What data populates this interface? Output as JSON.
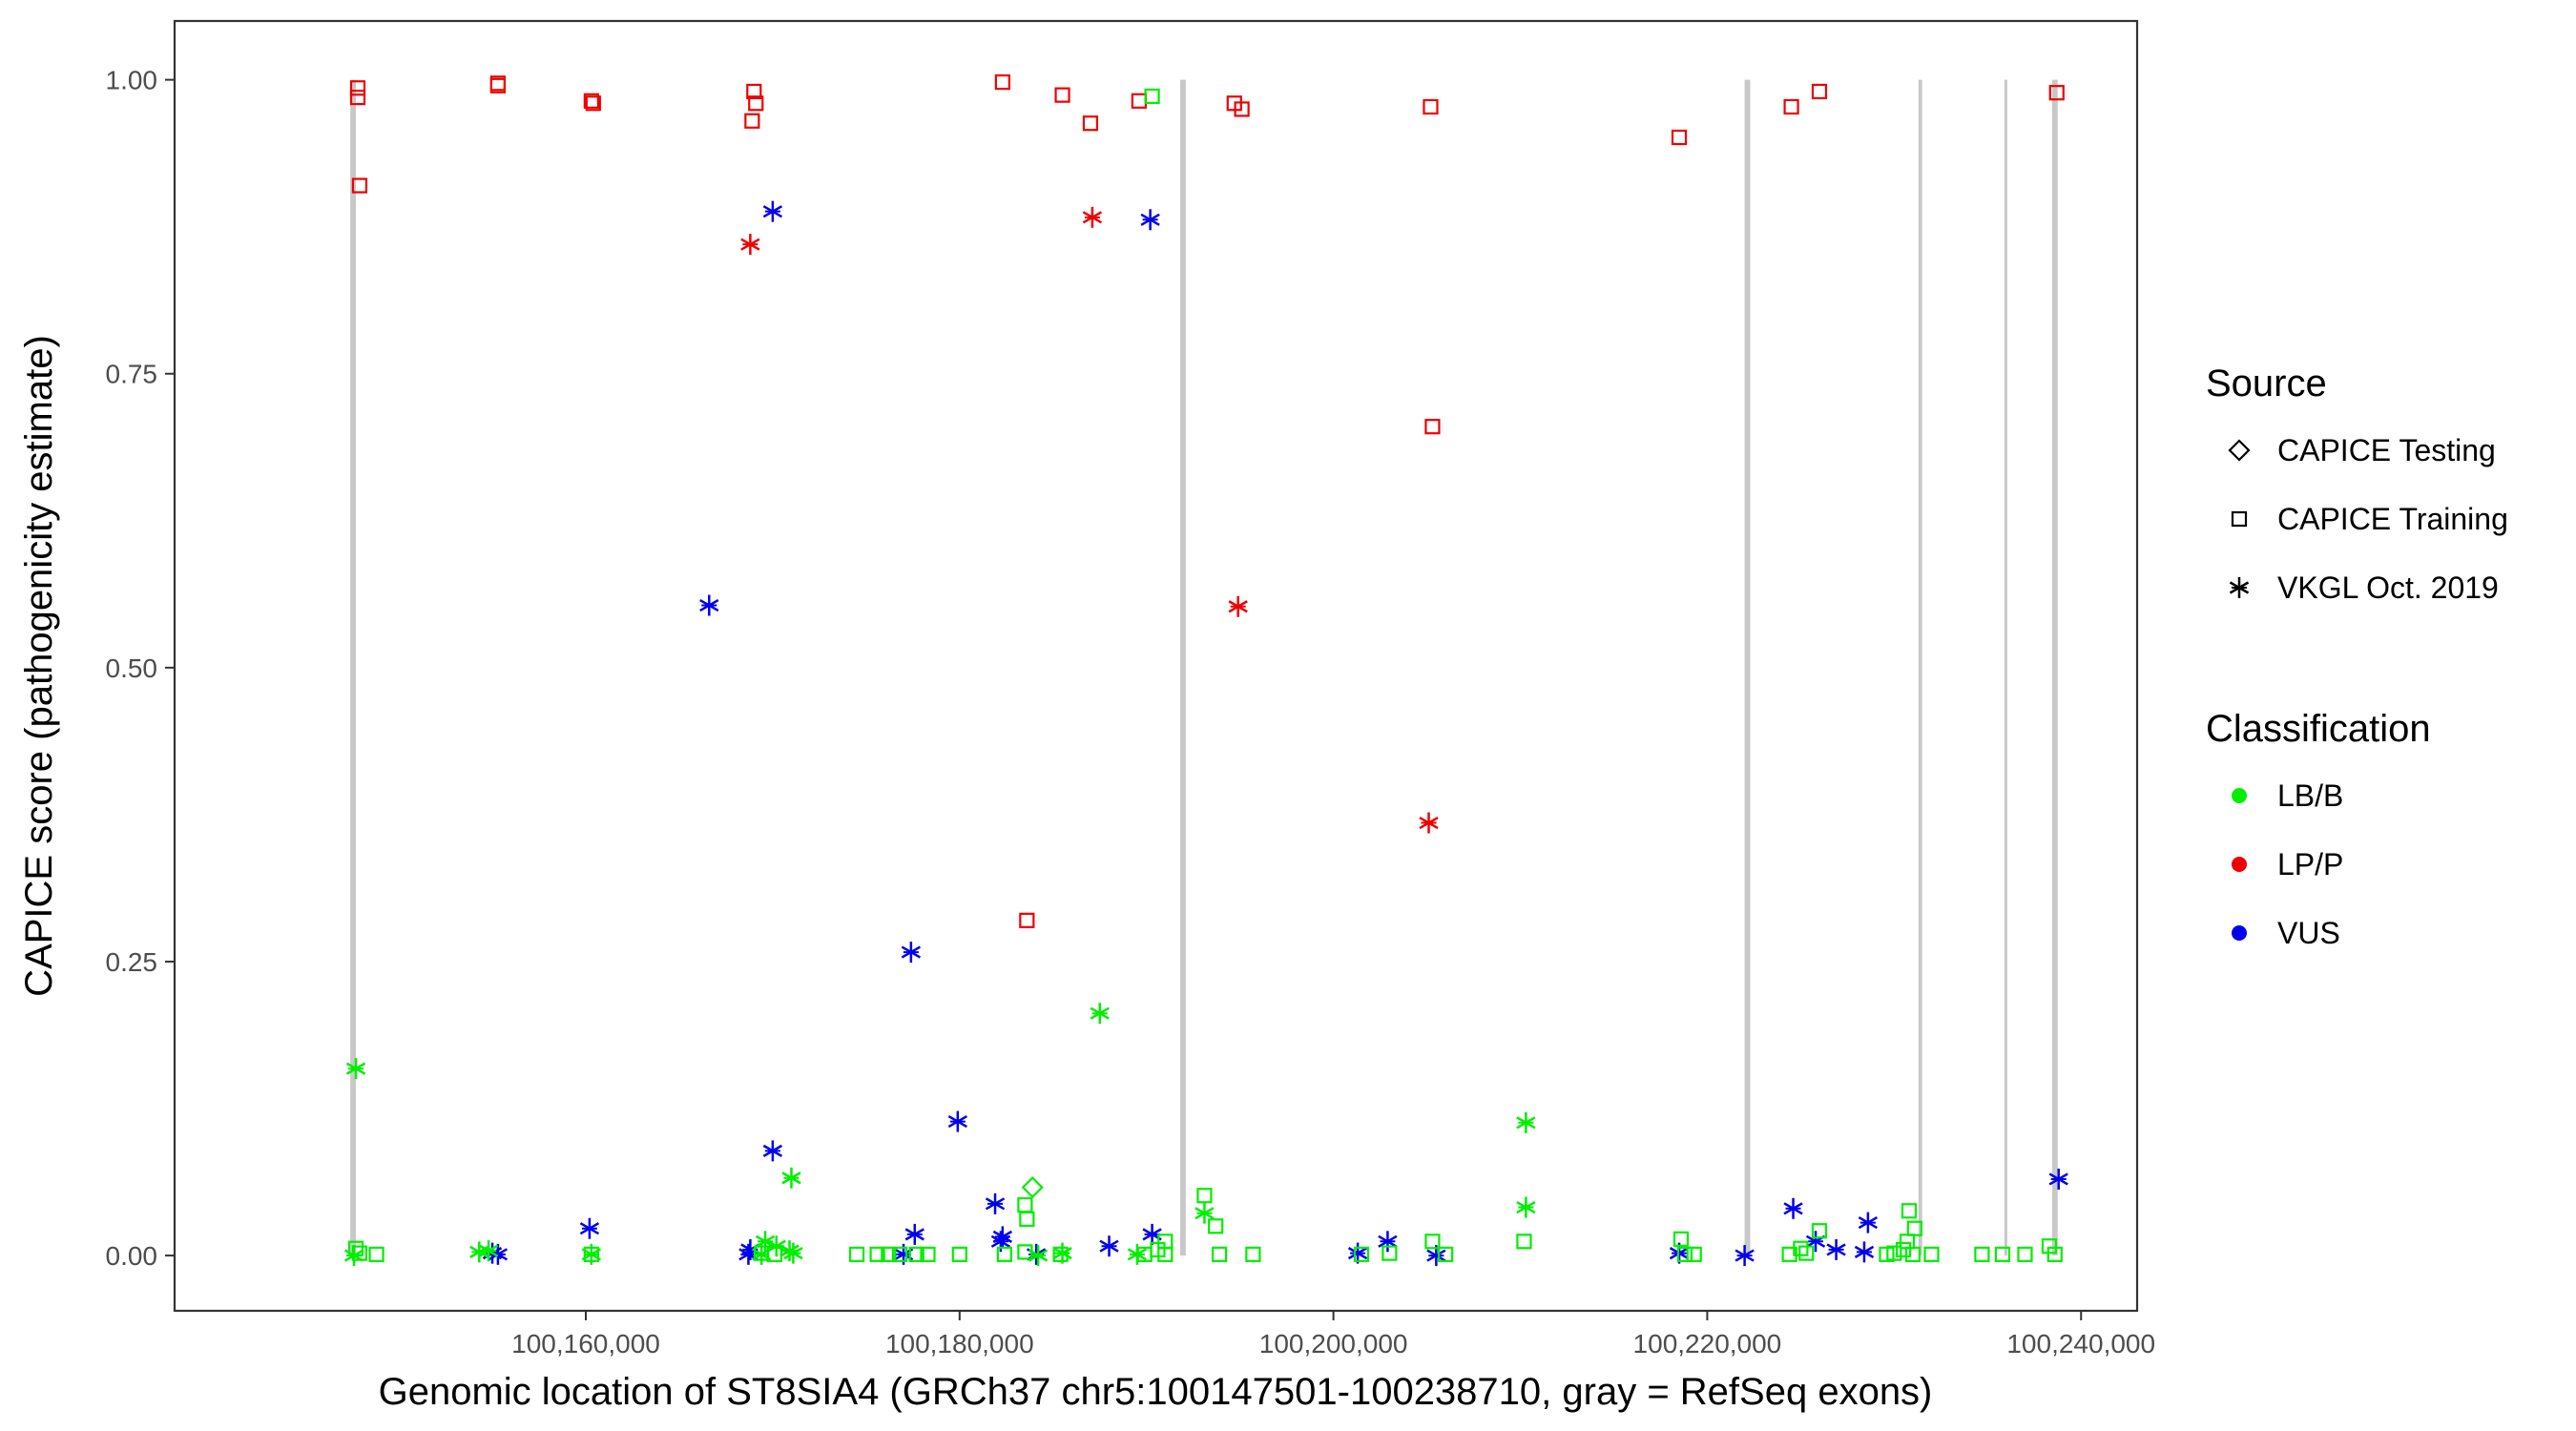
{
  "chart_data": {
    "type": "scatter",
    "xlabel": "Genomic location of ST8SIA4 (GRCh37 chr5:100147501-100238710, gray = RefSeq exons)",
    "ylabel": "CAPICE score (pathogenicity estimate)",
    "xlim": [
      100138000,
      100243000
    ],
    "ylim": [
      -0.047,
      1.05
    ],
    "x_ticks": [
      {
        "value": 100160000,
        "label": "100,160,000"
      },
      {
        "value": 100180000,
        "label": "100,180,000"
      },
      {
        "value": 100200000,
        "label": "100,200,000"
      },
      {
        "value": 100220000,
        "label": "100,220,000"
      },
      {
        "value": 100240000,
        "label": "100,240,000"
      }
    ],
    "y_ticks": [
      {
        "value": 0.0,
        "label": "0.00"
      },
      {
        "value": 0.25,
        "label": "0.25"
      },
      {
        "value": 0.5,
        "label": "0.50"
      },
      {
        "value": 0.75,
        "label": "0.75"
      },
      {
        "value": 1.0,
        "label": "1.00"
      }
    ],
    "grid": false,
    "exons": [
      {
        "start": 100147400,
        "end": 100147700
      },
      {
        "start": 100191800,
        "end": 100192100
      },
      {
        "start": 100222000,
        "end": 100222300
      },
      {
        "start": 100231300,
        "end": 100231500
      },
      {
        "start": 100235900,
        "end": 100236000
      },
      {
        "start": 100238450,
        "end": 100238750
      }
    ],
    "legend": {
      "position": "right",
      "source": {
        "title": "Source",
        "items": [
          {
            "label": "CAPICE Testing",
            "shape": "diamond"
          },
          {
            "label": "CAPICE Training",
            "shape": "square"
          },
          {
            "label": "VKGL Oct. 2019",
            "shape": "asterisk"
          }
        ]
      },
      "classification": {
        "title": "Classification",
        "items": [
          {
            "label": "LB/B",
            "color": "#00ee00"
          },
          {
            "label": "LP/P",
            "color": "#ee0000"
          },
          {
            "label": "VUS",
            "color": "#0000ee"
          }
        ]
      }
    },
    "series": [
      {
        "source": "CAPICE Training",
        "classification": "LP/P",
        "shape": "square",
        "color": "#ee0000",
        "points": [
          [
            100147800,
            0.993
          ],
          [
            100147800,
            0.985
          ],
          [
            100147900,
            0.91
          ],
          [
            100155300,
            0.997
          ],
          [
            100155300,
            0.995
          ],
          [
            100160300,
            0.982
          ],
          [
            100160400,
            0.98
          ],
          [
            100169000,
            0.99
          ],
          [
            100169100,
            0.98
          ],
          [
            100168900,
            0.965
          ],
          [
            100182300,
            0.998
          ],
          [
            100185500,
            0.987
          ],
          [
            100187000,
            0.963
          ],
          [
            100189600,
            0.982
          ],
          [
            100194700,
            0.98
          ],
          [
            100195100,
            0.975
          ],
          [
            100183600,
            0.285
          ],
          [
            100205200,
            0.977
          ],
          [
            100205300,
            0.705
          ],
          [
            100218500,
            0.951
          ],
          [
            100224500,
            0.977
          ],
          [
            100226000,
            0.99
          ],
          [
            100238700,
            0.989
          ]
        ]
      },
      {
        "source": "VKGL Oct. 2019",
        "classification": "LP/P",
        "shape": "asterisk",
        "color": "#ee0000",
        "points": [
          [
            100168800,
            0.86
          ],
          [
            100187100,
            0.883
          ],
          [
            100194900,
            0.552
          ],
          [
            100205100,
            0.368
          ]
        ]
      },
      {
        "source": "VKGL Oct. 2019",
        "classification": "VUS",
        "shape": "asterisk",
        "color": "#0000ee",
        "points": [
          [
            100170000,
            0.888
          ],
          [
            100190200,
            0.881
          ],
          [
            100166600,
            0.553
          ],
          [
            100177400,
            0.258
          ],
          [
            100179900,
            0.114
          ],
          [
            100170000,
            0.089
          ],
          [
            100181900,
            0.044
          ],
          [
            100182300,
            0.016
          ],
          [
            100182200,
            0.012
          ],
          [
            100177600,
            0.018
          ],
          [
            100160200,
            0.023
          ],
          [
            100155300,
            0.001
          ],
          [
            100155000,
            0.002
          ],
          [
            100168800,
            0.005
          ],
          [
            100168700,
            0.001
          ],
          [
            100177000,
            0.001
          ],
          [
            100184100,
            0.001
          ],
          [
            100188000,
            0.008
          ],
          [
            100190300,
            0.018
          ],
          [
            100201300,
            0.002
          ],
          [
            100202900,
            0.012
          ],
          [
            100205500,
            0.0
          ],
          [
            100218500,
            0.002
          ],
          [
            100222000,
            0.0
          ],
          [
            100224600,
            0.04
          ],
          [
            100225800,
            0.012
          ],
          [
            100226900,
            0.005
          ],
          [
            100228400,
            0.003
          ],
          [
            100228600,
            0.028
          ],
          [
            100238800,
            0.065
          ]
        ]
      },
      {
        "source": "VKGL Oct. 2019",
        "classification": "LB/B",
        "shape": "asterisk",
        "color": "#00ee00",
        "points": [
          [
            100147700,
            0.159
          ],
          [
            100187500,
            0.206
          ],
          [
            100210300,
            0.113
          ],
          [
            100210300,
            0.041
          ],
          [
            100171000,
            0.066
          ],
          [
            100193100,
            0.036
          ],
          [
            100154300,
            0.003
          ],
          [
            100154800,
            0.004
          ],
          [
            100169600,
            0.012
          ],
          [
            100170200,
            0.008
          ],
          [
            100170900,
            0.004
          ],
          [
            100169400,
            0.001
          ],
          [
            100171100,
            0.002
          ],
          [
            100185500,
            0.002
          ],
          [
            100189500,
            0.001
          ],
          [
            100147600,
            0.0
          ],
          [
            100160300,
            0.001
          ],
          [
            100184200,
            0.0
          ]
        ]
      },
      {
        "source": "CAPICE Training",
        "classification": "LB/B",
        "shape": "square",
        "color": "#00ee00",
        "points": [
          [
            100190300,
            0.986
          ],
          [
            100147700,
            0.006
          ],
          [
            100147900,
            0.002
          ],
          [
            100148800,
            0.001
          ],
          [
            100160300,
            0.001
          ],
          [
            100169400,
            0.002
          ],
          [
            100170100,
            0.001
          ],
          [
            100174500,
            0.001
          ],
          [
            100175600,
            0.001
          ],
          [
            100176200,
            0.001
          ],
          [
            100176800,
            0.001
          ],
          [
            100177700,
            0.001
          ],
          [
            100178300,
            0.001
          ],
          [
            100180000,
            0.001
          ],
          [
            100182400,
            0.001
          ],
          [
            100183500,
            0.043
          ],
          [
            100183600,
            0.031
          ],
          [
            100183500,
            0.003
          ],
          [
            100185400,
            0.001
          ],
          [
            100189900,
            0.001
          ],
          [
            100190600,
            0.005
          ],
          [
            100191000,
            0.012
          ],
          [
            100191000,
            0.001
          ],
          [
            100193100,
            0.051
          ],
          [
            100193700,
            0.025
          ],
          [
            100193900,
            0.001
          ],
          [
            100195700,
            0.001
          ],
          [
            100201500,
            0.001
          ],
          [
            100203000,
            0.002
          ],
          [
            100205300,
            0.012
          ],
          [
            100206000,
            0.001
          ],
          [
            100210200,
            0.012
          ],
          [
            100218600,
            0.014
          ],
          [
            100218800,
            0.001
          ],
          [
            100219300,
            0.001
          ],
          [
            100224400,
            0.001
          ],
          [
            100225000,
            0.006
          ],
          [
            100225300,
            0.002
          ],
          [
            100226000,
            0.021
          ],
          [
            100229600,
            0.001
          ],
          [
            100230000,
            0.002
          ],
          [
            100230800,
            0.038
          ],
          [
            100231100,
            0.023
          ],
          [
            100230700,
            0.012
          ],
          [
            100230500,
            0.005
          ],
          [
            100231000,
            0.001
          ],
          [
            100232000,
            0.001
          ],
          [
            100234700,
            0.001
          ],
          [
            100235800,
            0.001
          ],
          [
            100237000,
            0.001
          ],
          [
            100238300,
            0.008
          ],
          [
            100238600,
            0.001
          ]
        ]
      },
      {
        "source": "CAPICE Testing",
        "classification": "LB/B",
        "shape": "diamond",
        "color": "#00ee00",
        "points": [
          [
            100183900,
            0.058
          ]
        ]
      }
    ]
  }
}
